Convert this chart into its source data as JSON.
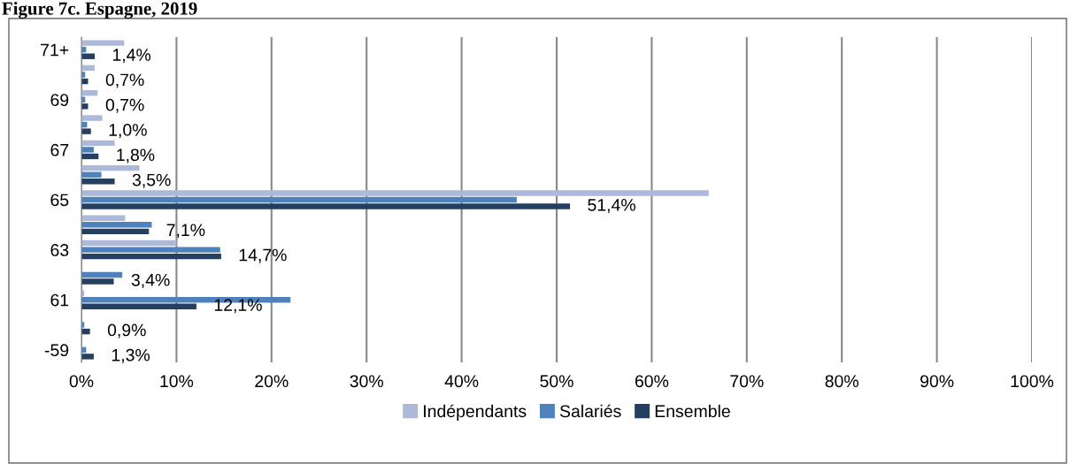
{
  "chart_data": {
    "type": "bar",
    "orientation": "horizontal",
    "title": "Figure 7c. Espagne, 2019",
    "categories": [
      "71+",
      null,
      "69",
      null,
      "67",
      null,
      "65",
      null,
      "63",
      null,
      "61",
      null,
      "-59"
    ],
    "series": [
      {
        "name": "Indépendants",
        "color": "#adb9d9",
        "values": [
          4.5,
          1.4,
          1.7,
          2.2,
          3.5,
          6.1,
          66.0,
          4.6,
          10.0,
          0,
          0.3,
          0,
          0
        ]
      },
      {
        "name": "Salariés",
        "color": "#4f81bd",
        "values": [
          0.5,
          0.4,
          0.4,
          0.6,
          1.3,
          2.1,
          45.8,
          7.4,
          14.6,
          4.3,
          22.0,
          0.3,
          0.5
        ]
      },
      {
        "name": "Ensemble",
        "color": "#243f60",
        "values": [
          1.4,
          0.7,
          0.7,
          1.0,
          1.8,
          3.5,
          51.4,
          7.1,
          14.7,
          3.4,
          12.1,
          0.9,
          1.3
        ],
        "value_labels": [
          "1,4%",
          "0,7%",
          "0,7%",
          "1,0%",
          "1,8%",
          "3,5%",
          "51,4%",
          "7,1%",
          "14,7%",
          "3,4%",
          "12,1%",
          "0,9%",
          "1,3%"
        ]
      }
    ],
    "xlim": [
      0,
      100
    ],
    "xticks": [
      {
        "value": 0,
        "label": "0%"
      },
      {
        "value": 10,
        "label": "10%"
      },
      {
        "value": 20,
        "label": "20%"
      },
      {
        "value": 30,
        "label": "30%"
      },
      {
        "value": 40,
        "label": "40%"
      },
      {
        "value": 50,
        "label": "50%"
      },
      {
        "value": 60,
        "label": "60%"
      },
      {
        "value": 70,
        "label": "70%"
      },
      {
        "value": 80,
        "label": "80%"
      },
      {
        "value": 90,
        "label": "90%"
      },
      {
        "value": 100,
        "label": "100%"
      }
    ],
    "grid": "x",
    "legend": "bottom"
  }
}
